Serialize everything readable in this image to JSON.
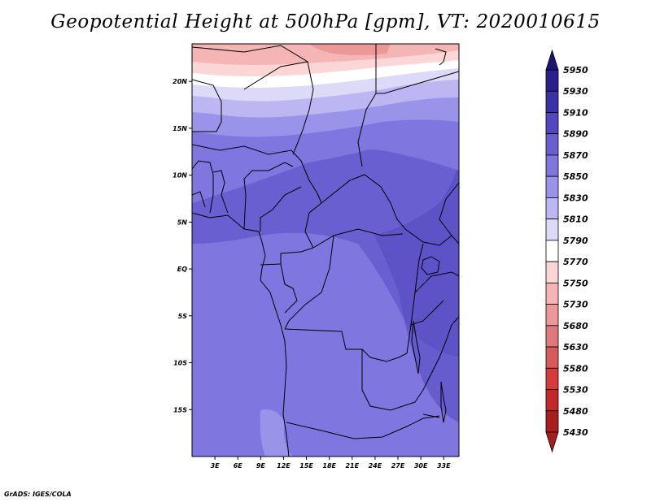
{
  "title": "Geopotential Height at 500hPa [gpm], VT: 2020010615",
  "credit": "GrADS: IGES/COLA",
  "colors": {
    "5950": "#1e1473",
    "5930": "#2a1f8e",
    "5910": "#3a30a8",
    "5890": "#5347bf",
    "5870": "#6a5fd0",
    "5850": "#7f76e0",
    "5830": "#9a93ea",
    "5810": "#bcb7f2",
    "5790": "#dcdaf8",
    "5770": "#ffffff",
    "5750": "#fcd6d6",
    "5730": "#f6b5b5",
    "5680": "#ed9898",
    "5630": "#e07a7a",
    "5580": "#d85a5a",
    "5530": "#d63a3a",
    "5480": "#c4282a",
    "5430": "#a81e1e"
  },
  "chart_data": {
    "type": "heatmap",
    "title": "Geopotential Height at 500hPa [gpm], VT: 2020010615",
    "units": "gpm",
    "valid_time": "2020010615",
    "level": "500hPa",
    "lon_range": [
      0,
      35
    ],
    "lat_range": [
      -20,
      24
    ],
    "x_ticks": [
      "3E",
      "6E",
      "9E",
      "12E",
      "15E",
      "18E",
      "21E",
      "24E",
      "27E",
      "30E",
      "33E"
    ],
    "y_ticks": [
      "20N",
      "15N",
      "10N",
      "5N",
      "EQ",
      "5S",
      "10S",
      "15S"
    ],
    "colorbar_levels": [
      "5950",
      "5930",
      "5910",
      "5890",
      "5870",
      "5850",
      "5830",
      "5810",
      "5790",
      "5770",
      "5750",
      "5730",
      "5680",
      "5630",
      "5580",
      "5530",
      "5480",
      "5430"
    ]
  }
}
